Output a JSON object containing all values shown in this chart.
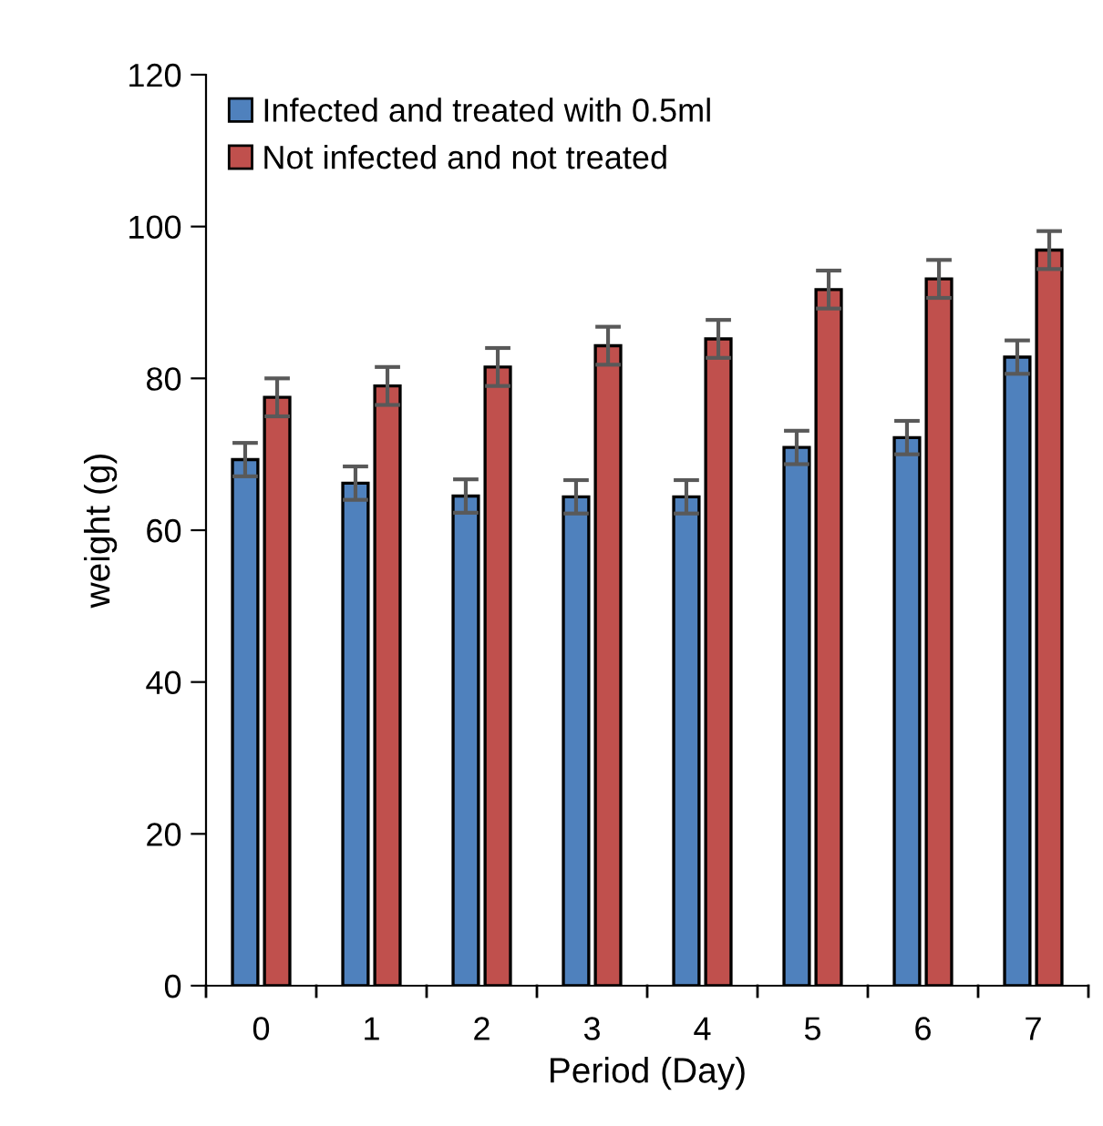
{
  "chart_data": {
    "type": "bar",
    "xlabel": "Period (Day)",
    "ylabel": "weight (g)",
    "categories": [
      "0",
      "1",
      "2",
      "3",
      "4",
      "5",
      "6",
      "7"
    ],
    "series": [
      {
        "name": "Infected and treated with 0.5ml",
        "color": "#4f81bd",
        "values": [
          69.3,
          66.2,
          64.5,
          64.4,
          64.4,
          70.9,
          72.2,
          82.8
        ],
        "errors": [
          2.2,
          2.2,
          2.2,
          2.2,
          2.2,
          2.2,
          2.2,
          2.2
        ]
      },
      {
        "name": "Not infected and not treated",
        "color": "#c0504d",
        "values": [
          77.5,
          79.0,
          81.5,
          84.3,
          85.2,
          91.7,
          93.1,
          96.9
        ],
        "errors": [
          2.5,
          2.5,
          2.5,
          2.5,
          2.5,
          2.5,
          2.5,
          2.5
        ]
      }
    ],
    "ylim": [
      0,
      120
    ],
    "yticks": [
      0,
      20,
      40,
      60,
      80,
      100,
      120
    ],
    "grid": false,
    "legend": "top left"
  }
}
